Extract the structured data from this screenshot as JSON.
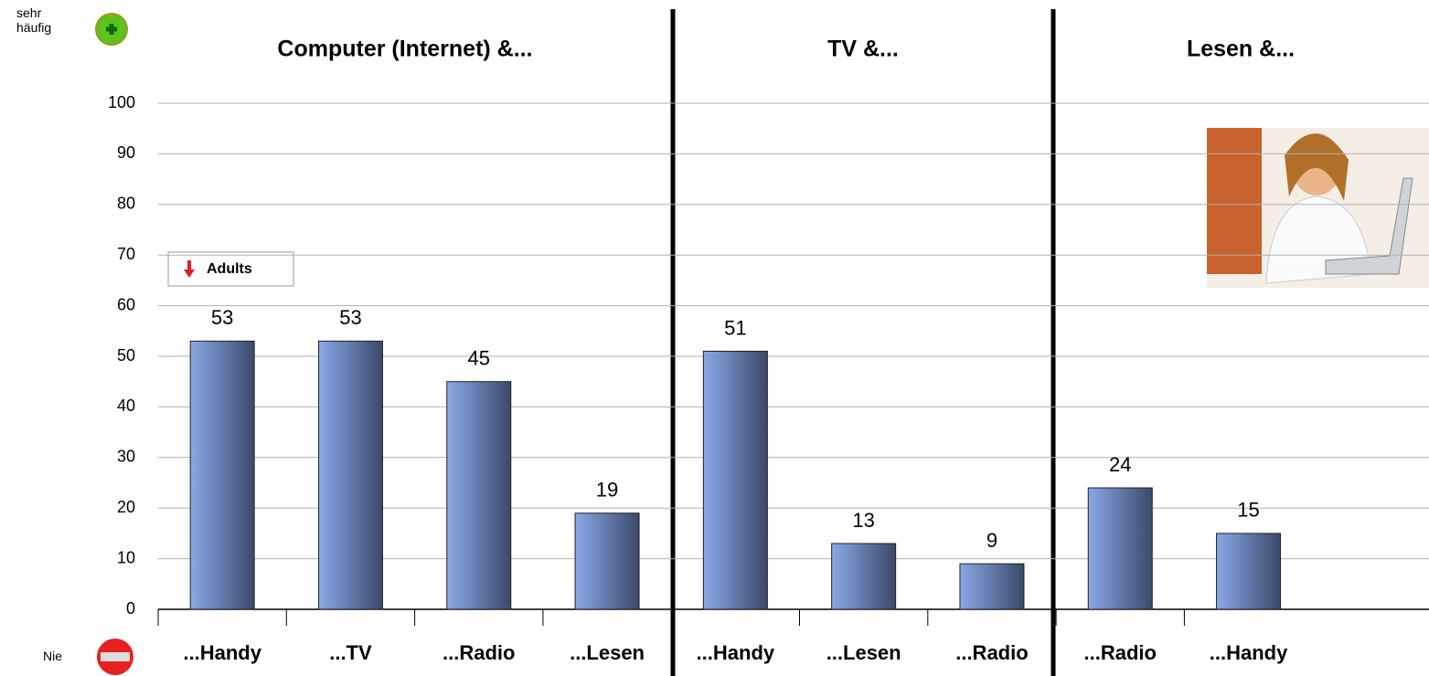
{
  "chart_data": {
    "type": "bar",
    "group_titles": [
      "Computer (Internet) &...",
      "TV &...",
      "Lesen &..."
    ],
    "categories": [
      "...Handy",
      "...TV",
      "...Radio",
      "...Lesen",
      "...Handy",
      "...Lesen",
      "...Radio",
      "...Radio",
      "...Handy",
      null
    ],
    "values": [
      53,
      53,
      45,
      19,
      51,
      13,
      9,
      24,
      15,
      null
    ],
    "color": "#8aa8e8",
    "ylim": [
      0,
      100
    ],
    "yticks": [
      0,
      10,
      20,
      30,
      40,
      50,
      60,
      70,
      80,
      90,
      100
    ],
    "grid": true,
    "top_label": "sehr häufig",
    "bottom_label": "Nie",
    "button_label": "Adults"
  }
}
